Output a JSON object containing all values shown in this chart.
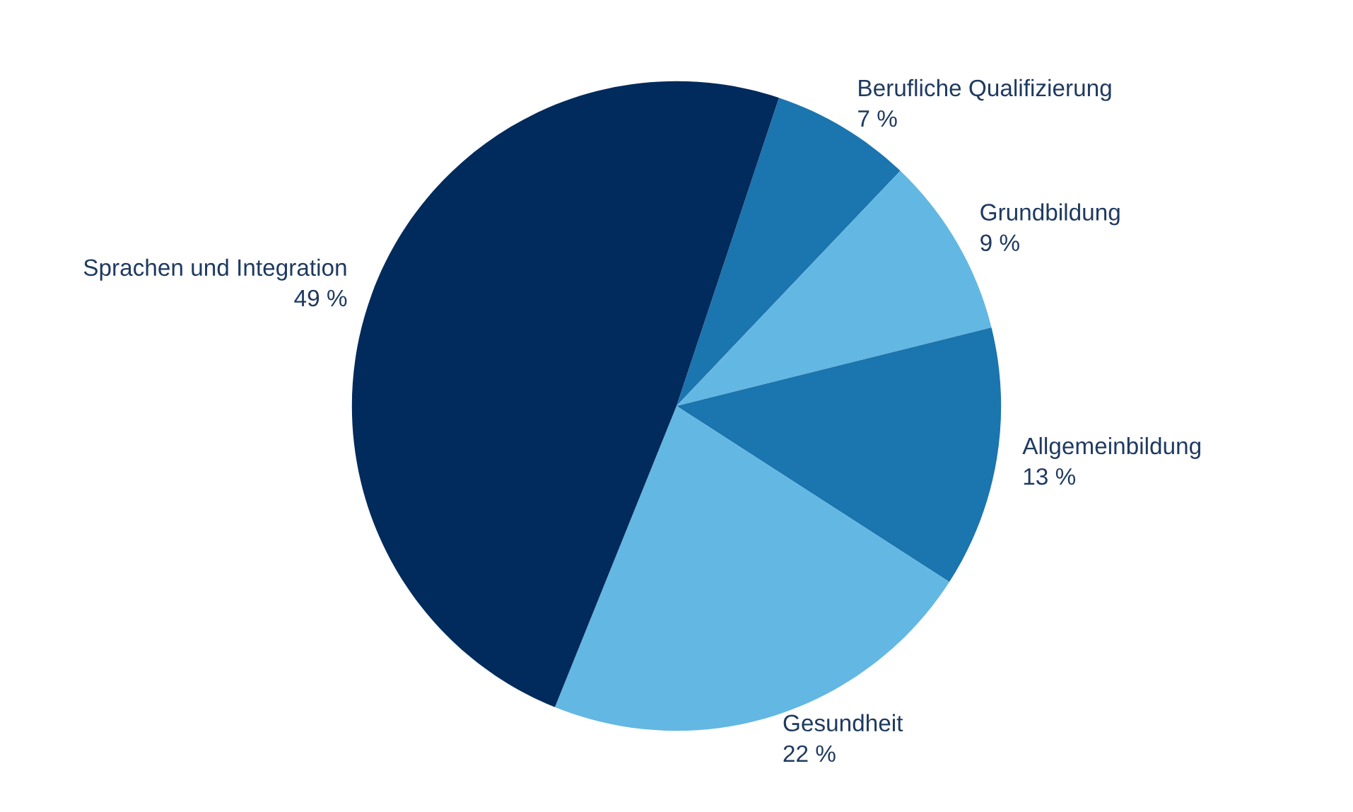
{
  "chart_data": {
    "type": "pie",
    "categories": [
      "Berufliche Qualifizierung",
      "Grundbildung",
      "Allgemeinbildung",
      "Gesundheit",
      "Sprachen und Integration"
    ],
    "values": [
      7,
      9,
      13,
      22,
      49
    ],
    "colors": [
      "#1b75ae",
      "#63b7e3",
      "#1b75ae",
      "#63b7e3",
      "#002b5c"
    ],
    "value_labels": [
      "7 %",
      "9 %",
      "13 %",
      "22 %",
      "49 %"
    ]
  }
}
